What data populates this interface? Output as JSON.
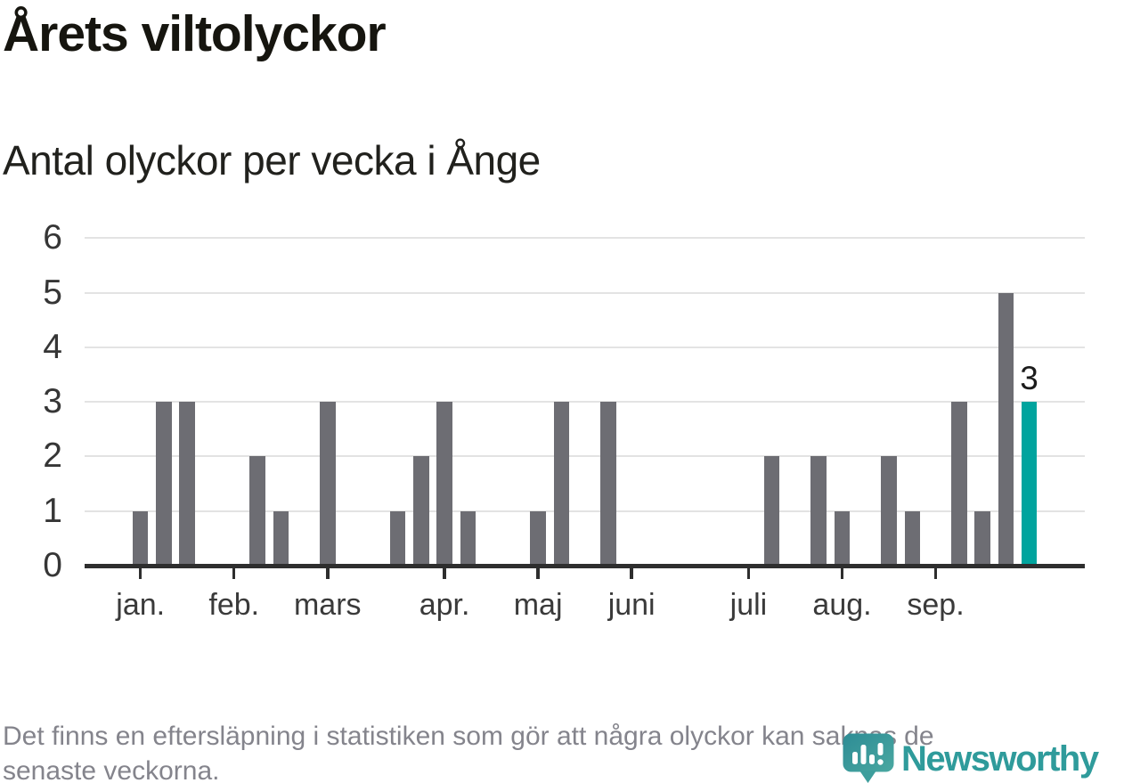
{
  "chart_data": {
    "type": "bar",
    "title": "Årets viltolyckor",
    "subtitle": "Antal olyckor per vecka i Ånge",
    "x_unit": "vecka",
    "weeks_start": 1,
    "values": [
      1,
      3,
      3,
      0,
      0,
      2,
      1,
      0,
      3,
      0,
      0,
      1,
      2,
      3,
      1,
      0,
      0,
      1,
      3,
      0,
      3,
      0,
      0,
      0,
      0,
      0,
      0,
      2,
      0,
      2,
      1,
      0,
      2,
      1,
      0,
      3,
      1,
      5,
      3
    ],
    "ylim": [
      0,
      6
    ],
    "yticks": [
      0,
      1,
      2,
      3,
      4,
      5,
      6
    ],
    "grid": true,
    "legend": "none",
    "month_ticks": [
      {
        "label": "jan.",
        "week": 1
      },
      {
        "label": "feb.",
        "week": 5
      },
      {
        "label": "mars",
        "week": 9
      },
      {
        "label": "apr.",
        "week": 14
      },
      {
        "label": "maj",
        "week": 18
      },
      {
        "label": "juni",
        "week": 22
      },
      {
        "label": "juli",
        "week": 27
      },
      {
        "label": "aug.",
        "week": 31
      },
      {
        "label": "sep.",
        "week": 35
      }
    ],
    "axis_total_weeks": 41,
    "highlight": {
      "week": 39,
      "value": 3,
      "annotation": "3"
    },
    "colors": {
      "bar": "#6d6d73",
      "highlight": "#00a49e",
      "axis": "#2e2e2e",
      "grid": "#e3e3e3",
      "tick_label": "#3a3a3a",
      "annotation": "#1b1b1b"
    }
  },
  "footnote": {
    "line1": "Det finns en eftersläpning i statistiken som gör att några olyckor kan saknas de",
    "line2": "senaste veckorna."
  },
  "logo": {
    "wordmark": "Newsworthy",
    "color": "#2f9b9b"
  }
}
